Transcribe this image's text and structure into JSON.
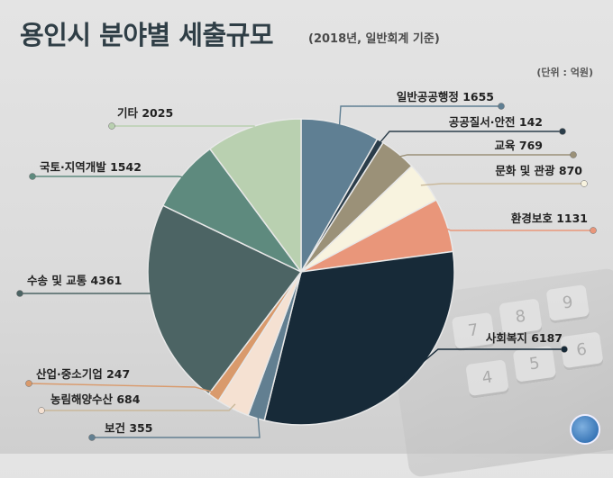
{
  "header": {
    "title": "용인시 분야별 세출규모",
    "subtitle": "(2018년, 일반회계 기준)",
    "unit": "(단위 : 억원)"
  },
  "chart_data": {
    "type": "pie",
    "title": "용인시 분야별 세출규모",
    "subtitle": "(2018년, 일반회계 기준)",
    "unit": "억원",
    "slices": [
      {
        "label": "일반공공행정",
        "value": 1655,
        "color": "#5f7f93"
      },
      {
        "label": "공공질서·안전",
        "value": 142,
        "color": "#2b3d4a"
      },
      {
        "label": "교육",
        "value": 769,
        "color": "#9b9178"
      },
      {
        "label": "문화 및 관광",
        "value": 870,
        "color": "#f8f3df"
      },
      {
        "label": "환경보호",
        "value": 1131,
        "color": "#e9967a"
      },
      {
        "label": "사회복지",
        "value": 6187,
        "color": "#172a38"
      },
      {
        "label": "보건",
        "value": 355,
        "color": "#627f91"
      },
      {
        "label": "농림해양수산",
        "value": 684,
        "color": "#f5e1d2"
      },
      {
        "label": "산업·중소기업",
        "value": 247,
        "color": "#d99a6c"
      },
      {
        "label": "수송 및 교통",
        "value": 4361,
        "color": "#4c6464"
      },
      {
        "label": "국토·지역개발",
        "value": 1542,
        "color": "#5e8a7e"
      },
      {
        "label": "기타",
        "value": 2025,
        "color": "#b9d0b0"
      }
    ]
  }
}
